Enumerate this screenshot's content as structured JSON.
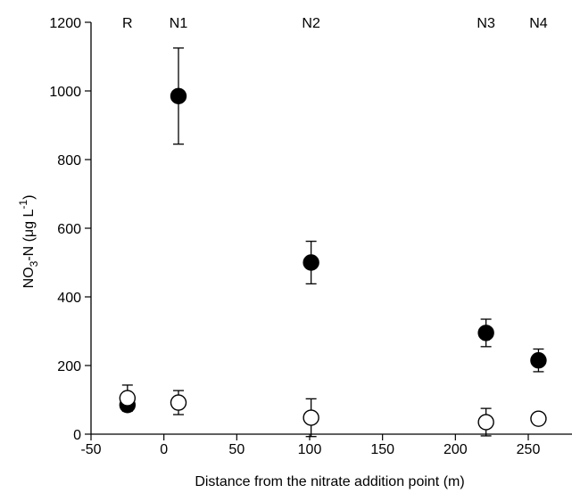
{
  "chart_data": {
    "type": "scatter",
    "title": "",
    "xlabel": "Distance from the nitrate addition point (m)",
    "ylabel_parts": {
      "base": "NO",
      "sub": "3",
      "mid": "-N (μg L",
      "sup": "-1",
      "end": ")"
    },
    "xlim": [
      -50,
      280
    ],
    "ylim": [
      0,
      1200
    ],
    "xticks": [
      -50,
      0,
      50,
      100,
      150,
      200,
      250
    ],
    "yticks": [
      0,
      200,
      400,
      600,
      800,
      1000,
      1200
    ],
    "grid": false,
    "site_labels": [
      {
        "x": -25,
        "label": "R"
      },
      {
        "x": 10,
        "label": "N1"
      },
      {
        "x": 101,
        "label": "N2"
      },
      {
        "x": 221,
        "label": "N3"
      },
      {
        "x": 257,
        "label": "N4"
      }
    ],
    "series": [
      {
        "marker": "filled-circle",
        "color": "#000000",
        "points": [
          {
            "x": -25,
            "y": 85,
            "err": 0
          },
          {
            "x": 10,
            "y": 985,
            "err": 140
          },
          {
            "x": 101,
            "y": 500,
            "err": 62
          },
          {
            "x": 221,
            "y": 295,
            "err": 40
          },
          {
            "x": 257,
            "y": 215,
            "err": 33
          }
        ]
      },
      {
        "marker": "open-circle",
        "color": "#000000",
        "points": [
          {
            "x": -25,
            "y": 105,
            "err": 38
          },
          {
            "x": 10,
            "y": 92,
            "err": 35
          },
          {
            "x": 101,
            "y": 48,
            "err": 55
          },
          {
            "x": 221,
            "y": 35,
            "err": 40
          },
          {
            "x": 257,
            "y": 45,
            "err": 0
          }
        ]
      }
    ]
  }
}
